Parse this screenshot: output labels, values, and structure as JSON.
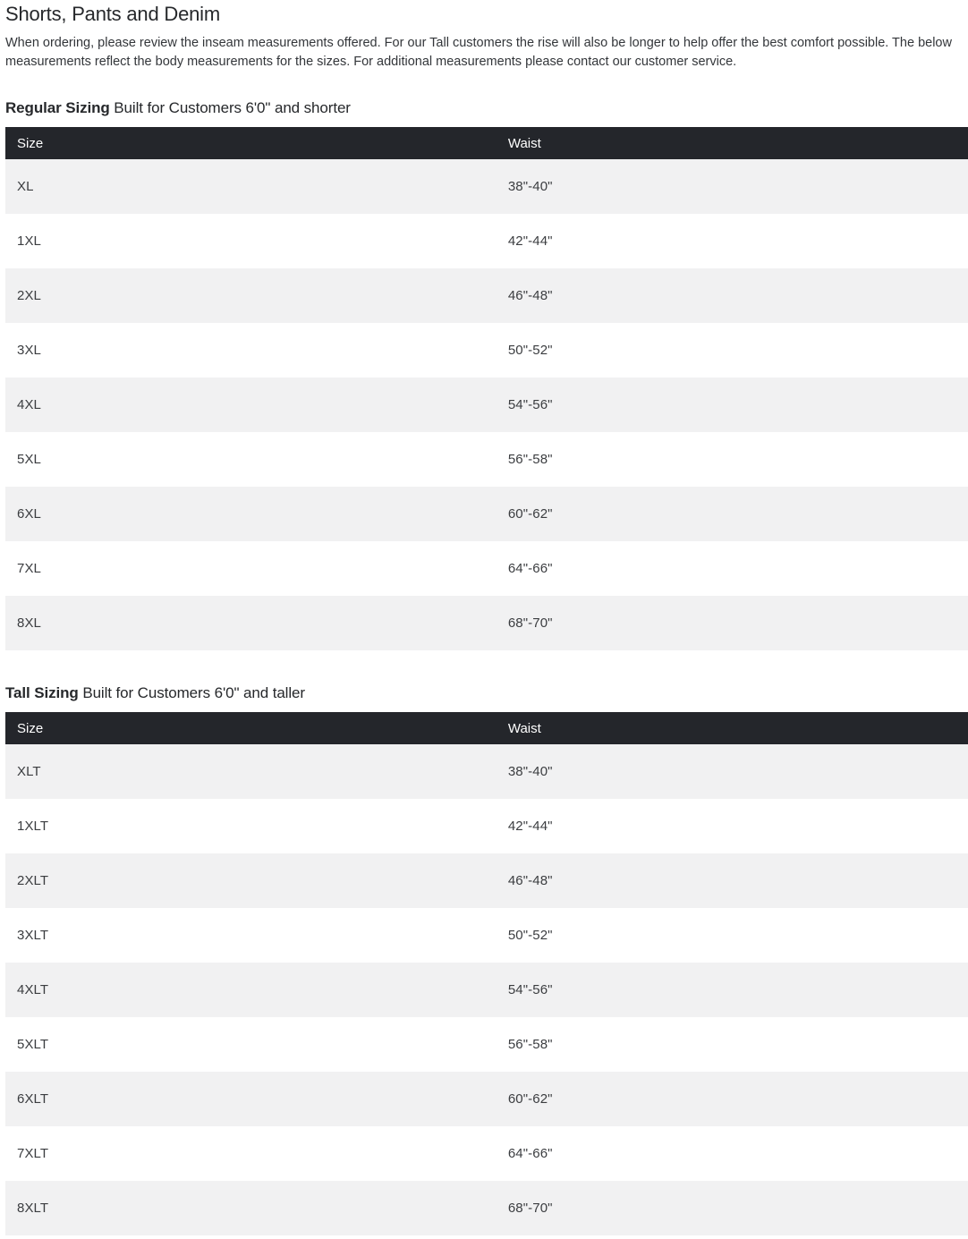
{
  "page": {
    "title": "Shorts, Pants and Denim",
    "intro": "When ordering, please review the inseam measurements offered. For our Tall customers the rise will also be longer to help offer the best comfort possible. The below measurements reflect the body measurements for the sizes. For additional measurements please contact our customer service."
  },
  "colors": {
    "header_bar": "#24262b",
    "row_alt": "#f1f1f2",
    "row_base": "#ffffff",
    "header_text": "#ffffff",
    "body_text": "#3b3d40"
  },
  "tables": [
    {
      "id": "regular",
      "heading_bold": "Regular Sizing",
      "heading_rest": " Built for Customers 6'0\" and shorter",
      "columns": [
        "Size",
        "Waist"
      ],
      "rows": [
        [
          "XL",
          "38\"-40\""
        ],
        [
          "1XL",
          "42\"-44\""
        ],
        [
          "2XL",
          "46\"-48\""
        ],
        [
          "3XL",
          "50\"-52\""
        ],
        [
          "4XL",
          "54\"-56\""
        ],
        [
          "5XL",
          "56\"-58\""
        ],
        [
          "6XL",
          "60\"-62\""
        ],
        [
          "7XL",
          "64\"-66\""
        ],
        [
          "8XL",
          "68\"-70\""
        ]
      ]
    },
    {
      "id": "tall",
      "heading_bold": "Tall Sizing",
      "heading_rest": " Built for Customers 6'0\" and taller",
      "columns": [
        "Size",
        "Waist"
      ],
      "rows": [
        [
          "XLT",
          "38\"-40\""
        ],
        [
          "1XLT",
          "42\"-44\""
        ],
        [
          "2XLT",
          "46\"-48\""
        ],
        [
          "3XLT",
          "50\"-52\""
        ],
        [
          "4XLT",
          "54\"-56\""
        ],
        [
          "5XLT",
          "56\"-58\""
        ],
        [
          "6XLT",
          "60\"-62\""
        ],
        [
          "7XLT",
          "64\"-66\""
        ],
        [
          "8XLT",
          "68\"-70\""
        ]
      ]
    }
  ]
}
